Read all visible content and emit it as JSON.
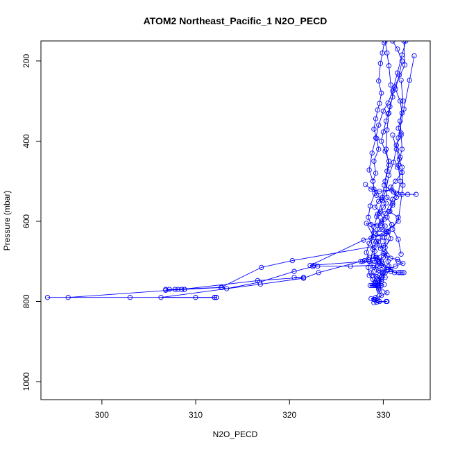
{
  "chart_data": {
    "type": "line",
    "title": "ATOM2 Northeast_Pacific_1 N2O_PECD",
    "xlabel": "N2O_PECD",
    "ylabel": "Pressure (mbar)",
    "xlim": [
      293.5,
      335
    ],
    "ylim": [
      1045,
      150
    ],
    "y_inverted": true,
    "grid": false,
    "series_color": "#0000ff",
    "marker": "open-circle",
    "x_ticks": [
      "300",
      "310",
      "320",
      "330"
    ],
    "x_tick_values": [
      300,
      310,
      320,
      330
    ],
    "y_ticks": [
      "200",
      "400",
      "600",
      "800",
      "1000"
    ],
    "y_tick_values": [
      200,
      400,
      600,
      800,
      1000
    ],
    "series": [
      {
        "values": [
          [
            329.0,
            803
          ],
          [
            329.4,
            798
          ],
          [
            329.8,
            785
          ],
          [
            329.5,
            770
          ],
          [
            329.2,
            760
          ],
          [
            329.8,
            745
          ],
          [
            329.6,
            735
          ],
          [
            330.0,
            728
          ],
          [
            329.3,
            720
          ],
          [
            329.6,
            706
          ],
          [
            329.8,
            700
          ],
          [
            329.4,
            695
          ],
          [
            329.3,
            690
          ],
          [
            329.0,
            688
          ],
          [
            329.1,
            675
          ],
          [
            329.0,
            665
          ],
          [
            329.2,
            652
          ],
          [
            329.5,
            650
          ],
          [
            329.9,
            640
          ],
          [
            329.2,
            630
          ],
          [
            329.6,
            620
          ],
          [
            329.4,
            610
          ],
          [
            329.8,
            600
          ],
          [
            329.3,
            588
          ],
          [
            329.7,
            575
          ],
          [
            329.1,
            565
          ],
          [
            329.5,
            550
          ],
          [
            329.8,
            545
          ],
          [
            329.3,
            535
          ],
          [
            329.0,
            520
          ],
          [
            328.9,
            500
          ],
          [
            329.2,
            480
          ],
          [
            329.0,
            450
          ],
          [
            329.5,
            420
          ],
          [
            329.3,
            393
          ],
          [
            329.0,
            370
          ],
          [
            329.2,
            344
          ],
          [
            329.4,
            322
          ],
          [
            329.6,
            306
          ],
          [
            329.8,
            280
          ],
          [
            329.5,
            250
          ],
          [
            329.7,
            206
          ],
          [
            329.9,
            180
          ],
          [
            330.1,
            155
          ]
        ]
      },
      {
        "values": [
          [
            330.2,
            150
          ],
          [
            330.4,
            180
          ],
          [
            330.6,
            212
          ],
          [
            330.8,
            260
          ],
          [
            331.0,
            290
          ],
          [
            330.7,
            314
          ],
          [
            330.5,
            332
          ],
          [
            330.3,
            350
          ],
          [
            330.0,
            377
          ],
          [
            329.8,
            400
          ],
          [
            330.2,
            425
          ],
          [
            330.6,
            450
          ],
          [
            330.4,
            475
          ],
          [
            330.1,
            510
          ],
          [
            329.9,
            540
          ],
          [
            330.3,
            555
          ],
          [
            330.0,
            565
          ],
          [
            329.6,
            580
          ],
          [
            330.1,
            595
          ],
          [
            329.8,
            605
          ],
          [
            330.2,
            612
          ],
          [
            329.9,
            620
          ],
          [
            330.5,
            628
          ],
          [
            330.1,
            640
          ],
          [
            330.3,
            650
          ],
          [
            330.0,
            660
          ],
          [
            329.7,
            668
          ],
          [
            330.2,
            678
          ],
          [
            330.0,
            690
          ],
          [
            329.5,
            700
          ],
          [
            329.0,
            715
          ],
          [
            328.7,
            728
          ],
          [
            329.3,
            738
          ],
          [
            329.8,
            750
          ],
          [
            329.2,
            760
          ],
          [
            328.6,
            760
          ],
          [
            329.5,
            762
          ],
          [
            330.4,
            778
          ],
          [
            329.0,
            795
          ],
          [
            329.6,
            800
          ],
          [
            330.4,
            800
          ]
        ]
      },
      {
        "values": [
          [
            331.0,
            150
          ],
          [
            331.5,
            170
          ],
          [
            332.0,
            200
          ],
          [
            331.7,
            235
          ],
          [
            331.3,
            270
          ],
          [
            331.8,
            300
          ],
          [
            332.0,
            330
          ],
          [
            331.6,
            368
          ],
          [
            331.9,
            385
          ],
          [
            331.4,
            410
          ],
          [
            331.8,
            440
          ],
          [
            331.5,
            465
          ],
          [
            332.0,
            478
          ],
          [
            331.3,
            500
          ],
          [
            330.8,
            515
          ],
          [
            331.1,
            527
          ],
          [
            331.4,
            540
          ],
          [
            331.0,
            560
          ],
          [
            330.7,
            575
          ],
          [
            330.4,
            590
          ],
          [
            330.9,
            608
          ],
          [
            330.5,
            625
          ],
          [
            330.8,
            643
          ],
          [
            330.2,
            665
          ],
          [
            330.5,
            700
          ],
          [
            330.8,
            720
          ],
          [
            331.2,
            728
          ],
          [
            331.8,
            728
          ],
          [
            332.2,
            728
          ]
        ]
      },
      {
        "values": [
          [
            332.4,
            150
          ],
          [
            332.0,
            185
          ],
          [
            331.5,
            230
          ],
          [
            331.0,
            275
          ],
          [
            330.5,
            305
          ],
          [
            330.0,
            325
          ],
          [
            329.5,
            360
          ],
          [
            329.2,
            392
          ],
          [
            328.8,
            430
          ],
          [
            328.5,
            472
          ],
          [
            328.9,
            500
          ],
          [
            329.1,
            530
          ],
          [
            328.6,
            562
          ],
          [
            328.4,
            590
          ],
          [
            328.7,
            608
          ],
          [
            329.0,
            628
          ],
          [
            328.5,
            655
          ],
          [
            328.2,
            678
          ],
          [
            328.5,
            690
          ],
          [
            328.0,
            698
          ],
          [
            327.8,
            700
          ]
        ]
      },
      {
        "values": [
          [
            333.3,
            187
          ],
          [
            332.8,
            248
          ],
          [
            332.2,
            320
          ],
          [
            331.6,
            392
          ],
          [
            331.1,
            453
          ],
          [
            330.6,
            485
          ],
          [
            330.3,
            520
          ],
          [
            329.9,
            548
          ],
          [
            329.4,
            582
          ],
          [
            329.0,
            615
          ],
          [
            328.7,
            642
          ],
          [
            328.9,
            670
          ],
          [
            328.6,
            700
          ],
          [
            328.4,
            715
          ],
          [
            328.5,
            735
          ],
          [
            328.9,
            745
          ],
          [
            329.2,
            752
          ],
          [
            329.5,
            760
          ],
          [
            329.8,
            740
          ],
          [
            330.2,
            728
          ],
          [
            330.8,
            725
          ],
          [
            331.6,
            728
          ],
          [
            332.0,
            728
          ]
        ]
      },
      {
        "values": [
          [
            331.9,
            248
          ],
          [
            332.1,
            300
          ],
          [
            331.8,
            350
          ],
          [
            331.9,
            380
          ],
          [
            332.0,
            420
          ],
          [
            331.6,
            460
          ],
          [
            331.8,
            500
          ],
          [
            331.6,
            533
          ],
          [
            332.0,
            533
          ],
          [
            332.6,
            533
          ],
          [
            333.5,
            533
          ]
        ]
      },
      {
        "values": [
          [
            332.2,
            150
          ],
          [
            332.3,
            210
          ],
          [
            331.2,
            265
          ],
          [
            330.6,
            330
          ],
          [
            330.4,
            372
          ],
          [
            330.3,
            420
          ],
          [
            330.6,
            460
          ],
          [
            330.2,
            500
          ],
          [
            330.4,
            540
          ],
          [
            331.0,
            555
          ],
          [
            330.6,
            575
          ],
          [
            331.6,
            590
          ],
          [
            331.0,
            620
          ],
          [
            331.6,
            645
          ],
          [
            331.9,
            682
          ]
        ]
      },
      {
        "values": [
          [
            328.1,
            508
          ],
          [
            328.7,
            520
          ],
          [
            329.6,
            525
          ],
          [
            330.9,
            522
          ],
          [
            331.4,
            530
          ],
          [
            331.0,
            545
          ],
          [
            330.2,
            580
          ],
          [
            329.7,
            610
          ],
          [
            328.2,
            605
          ],
          [
            329.0,
            640
          ],
          [
            330.3,
            625
          ],
          [
            331.6,
            600
          ],
          [
            332.1,
            510
          ],
          [
            332.0,
            465
          ],
          [
            331.7,
            445
          ],
          [
            331.4,
            420
          ],
          [
            331.0,
            385
          ]
        ]
      },
      {
        "values": [
          [
            329.6,
            700
          ],
          [
            329.9,
            705
          ],
          [
            330.0,
            712
          ],
          [
            330.4,
            720
          ],
          [
            329.9,
            730
          ],
          [
            330.2,
            740
          ],
          [
            329.6,
            748
          ],
          [
            329.1,
            752
          ],
          [
            328.8,
            760
          ],
          [
            329.4,
            760
          ],
          [
            329.8,
            760
          ],
          [
            330.1,
            758
          ]
        ]
      },
      {
        "values": [
          [
            330.3,
            630
          ],
          [
            329.0,
            640
          ],
          [
            327.9,
            647
          ],
          [
            322.2,
            710
          ],
          [
            329.3,
            698
          ],
          [
            330.4,
            685
          ]
        ]
      },
      {
        "values": [
          [
            329.3,
            650
          ],
          [
            329.6,
            660
          ],
          [
            320.3,
            698
          ],
          [
            317.0,
            715
          ],
          [
            312.7,
            765
          ],
          [
            307.2,
            770
          ],
          [
            306.8,
            770
          ],
          [
            308.1,
            770
          ],
          [
            308.5,
            770
          ],
          [
            308.8,
            770
          ]
        ]
      },
      {
        "values": [
          [
            329.0,
            710
          ],
          [
            326.5,
            712
          ],
          [
            323.0,
            712
          ],
          [
            322.6,
            710
          ],
          [
            322.5,
            713
          ],
          [
            320.5,
            725
          ],
          [
            316.8,
            752
          ],
          [
            313.3,
            768
          ],
          [
            312.8,
            765
          ],
          [
            308.8,
            770
          ],
          [
            306.8,
            772
          ],
          [
            307.8,
            770
          ]
        ]
      },
      {
        "values": [
          [
            330.6,
            712
          ],
          [
            329.8,
            710
          ],
          [
            328.5,
            700
          ],
          [
            327.6,
            700
          ],
          [
            323.1,
            728
          ],
          [
            321.5,
            742
          ],
          [
            316.9,
            757
          ],
          [
            306.3,
            790
          ],
          [
            310.0,
            790
          ],
          [
            312.2,
            790
          ],
          [
            312.0,
            790
          ]
        ]
      },
      {
        "values": [
          [
            320.5,
            740
          ],
          [
            321.5,
            740
          ],
          [
            316.6,
            748
          ],
          [
            308.5,
            770
          ],
          [
            296.4,
            790
          ],
          [
            294.2,
            790
          ],
          [
            303.0,
            790
          ],
          [
            312.0,
            790
          ],
          [
            312.2,
            790
          ]
        ]
      },
      {
        "values": [
          [
            328.4,
            695
          ],
          [
            329.2,
            690
          ],
          [
            330.0,
            680
          ],
          [
            330.8,
            692
          ],
          [
            331.5,
            695
          ],
          [
            331.6,
            700
          ],
          [
            332.1,
            705
          ],
          [
            331.3,
            712
          ],
          [
            330.5,
            720
          ],
          [
            329.5,
            722
          ],
          [
            328.9,
            735
          ],
          [
            329.3,
            745
          ],
          [
            329.0,
            760
          ],
          [
            329.6,
            775
          ],
          [
            329.2,
            790
          ],
          [
            328.7,
            793
          ],
          [
            329.1,
            795
          ],
          [
            329.3,
            802
          ],
          [
            330.3,
            800
          ]
        ]
      }
    ]
  }
}
